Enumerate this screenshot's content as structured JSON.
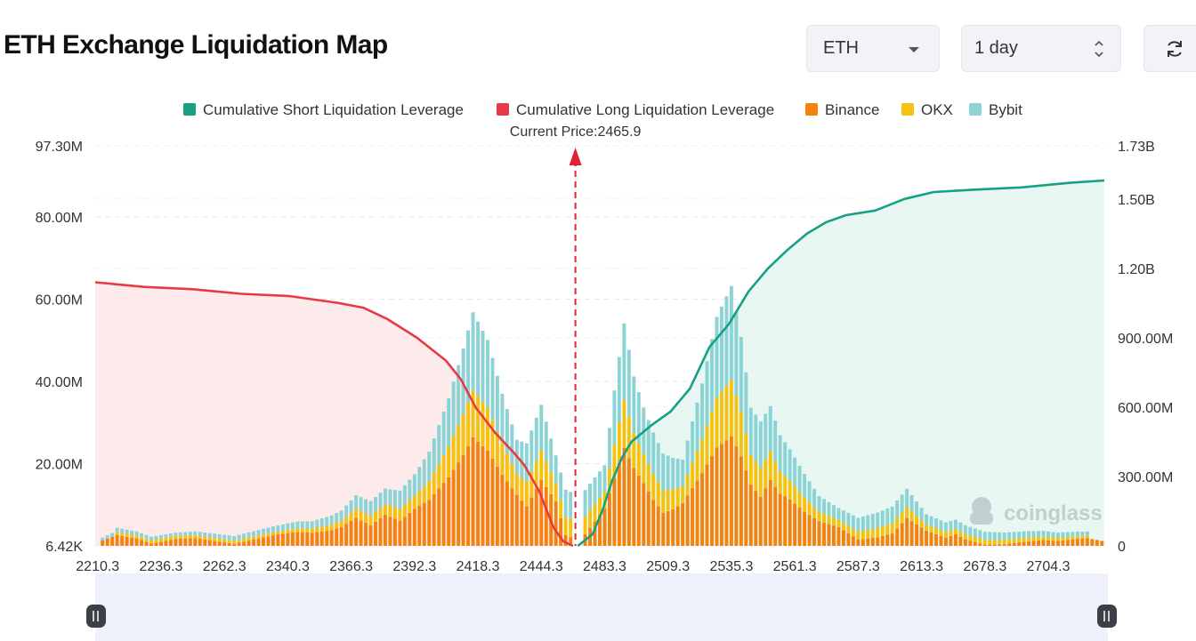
{
  "header": {
    "title": "ETH Exchange Liquidation Map",
    "asset_select": "ETH",
    "range_select": "1 day"
  },
  "icons": {
    "refresh": "refresh-icon",
    "dropdown": "chevron-down-icon",
    "stepper": "up-down-icon"
  },
  "colors": {
    "short_line": "#16a085",
    "short_fill": "#e6f6f1",
    "long_line": "#e83a45",
    "long_fill": "#fde9ea",
    "binance": "#f5820f",
    "okx": "#f5c30f",
    "bybit": "#8cd3d6",
    "price_marker": "#e0242f"
  },
  "watermark": "coinglass",
  "chart_data": {
    "type": "bar",
    "title": "",
    "current_price_label": "Current Price:2465.9",
    "current_price": 2465.9,
    "legend": [
      "Cumulative Short Liquidation Leverage",
      "Cumulative Long Liquidation Leverage",
      "Binance",
      "OKX",
      "Bybit"
    ],
    "legend_position": "top-center",
    "y_left_ticks": [
      "97.30M",
      "80.00M",
      "60.00M",
      "40.00M",
      "20.00M",
      "6.42K"
    ],
    "y_left_values": [
      97.3,
      80,
      60,
      40,
      20,
      0
    ],
    "y_left_range": [
      0,
      97.3
    ],
    "y_right_ticks": [
      "1.73B",
      "1.50B",
      "1.20B",
      "900.00M",
      "600.00M",
      "300.00M",
      "0"
    ],
    "y_right_values": [
      1.73,
      1.5,
      1.2,
      0.9,
      0.6,
      0.3,
      0
    ],
    "y_right_range": [
      0,
      1.73
    ],
    "x_ticks": [
      "2210.3",
      "2236.3",
      "2262.3",
      "2340.3",
      "2366.3",
      "2392.3",
      "2418.3",
      "2444.3",
      "2483.3",
      "2509.3",
      "2535.3",
      "2561.3",
      "2587.3",
      "2613.3",
      "2678.3",
      "2704.3"
    ],
    "x_tick_index": [
      0,
      13,
      26,
      39,
      52,
      65,
      78,
      91,
      104,
      117,
      130,
      143,
      156,
      169,
      182,
      195
    ],
    "price_index": 98.5,
    "bar_count": 207,
    "grid": true,
    "series": [
      {
        "name": "Binance",
        "peaks": [
          [
            1,
            1.3
          ],
          [
            4,
            2.6
          ],
          [
            8,
            1.8
          ],
          [
            11,
            0.6
          ],
          [
            16,
            1.7
          ],
          [
            20,
            1.9
          ],
          [
            24,
            1.2
          ],
          [
            28,
            0.5
          ],
          [
            33,
            1.8
          ],
          [
            37,
            2.8
          ],
          [
            41,
            3.4
          ],
          [
            44,
            3.2
          ],
          [
            48,
            3.8
          ],
          [
            50,
            4.6
          ],
          [
            53,
            6.8
          ],
          [
            56,
            5.0
          ],
          [
            59,
            7.6
          ],
          [
            62,
            6.1
          ],
          [
            65,
            9.0
          ],
          [
            68,
            11.2
          ],
          [
            72,
            16.7
          ],
          [
            75,
            22.1
          ],
          [
            77,
            26.4
          ],
          [
            80,
            23.2
          ],
          [
            83,
            17.3
          ],
          [
            86,
            12.4
          ],
          [
            88,
            9.6
          ],
          [
            91,
            16.1
          ],
          [
            94,
            10.8
          ],
          [
            96,
            2.6
          ],
          [
            99,
            1.2
          ],
          [
            102,
            6.0
          ],
          [
            104,
            9.1
          ],
          [
            106,
            16.5
          ],
          [
            108,
            23.8
          ],
          [
            110,
            18.9
          ],
          [
            112,
            15.3
          ],
          [
            114,
            11.2
          ],
          [
            116,
            8.0
          ],
          [
            118,
            8.9
          ],
          [
            120,
            10.4
          ],
          [
            124,
            17.7
          ],
          [
            127,
            23.9
          ],
          [
            130,
            26.6
          ],
          [
            132,
            21.8
          ],
          [
            134,
            14.9
          ],
          [
            136,
            11.9
          ],
          [
            138,
            16.0
          ],
          [
            140,
            12.7
          ],
          [
            142,
            11.3
          ],
          [
            145,
            8.3
          ],
          [
            148,
            6.0
          ],
          [
            152,
            4.6
          ],
          [
            156,
            1.5
          ],
          [
            160,
            2.1
          ],
          [
            163,
            3.0
          ],
          [
            166,
            6.8
          ],
          [
            170,
            3.7
          ],
          [
            174,
            2.0
          ],
          [
            176,
            2.8
          ],
          [
            178,
            1.6
          ],
          [
            182,
            0.3
          ],
          [
            186,
            0.4
          ],
          [
            190,
            1.0
          ],
          [
            194,
            1.4
          ],
          [
            197,
            1.2
          ],
          [
            200,
            1.6
          ],
          [
            203,
            1.9
          ],
          [
            206,
            1.2
          ]
        ],
        "color": "#f5820f"
      },
      {
        "name": "OKX",
        "peaks": [
          [
            4,
            0.7
          ],
          [
            37,
            0.7
          ],
          [
            44,
            1.0
          ],
          [
            50,
            1.5
          ],
          [
            53,
            2.2
          ],
          [
            59,
            2.5
          ],
          [
            65,
            3.2
          ],
          [
            68,
            4.5
          ],
          [
            72,
            7.5
          ],
          [
            75,
            9.9
          ],
          [
            77,
            11.5
          ],
          [
            80,
            10.3
          ],
          [
            83,
            7.6
          ],
          [
            86,
            5.1
          ],
          [
            91,
            7.2
          ],
          [
            94,
            4.5
          ],
          [
            104,
            4.1
          ],
          [
            106,
            8.1
          ],
          [
            108,
            11.6
          ],
          [
            110,
            8.5
          ],
          [
            112,
            7.0
          ],
          [
            120,
            4.1
          ],
          [
            124,
            8.2
          ],
          [
            127,
            12.2
          ],
          [
            130,
            13.8
          ],
          [
            132,
            10.9
          ],
          [
            134,
            7.2
          ],
          [
            138,
            7.0
          ],
          [
            140,
            5.4
          ],
          [
            145,
            3.5
          ],
          [
            148,
            2.3
          ],
          [
            152,
            1.7
          ],
          [
            166,
            2.7
          ],
          [
            170,
            1.5
          ],
          [
            203,
            0.6
          ]
        ],
        "color": "#f5c30f"
      },
      {
        "name": "Bybit",
        "peaks": [
          [
            1,
            0.7
          ],
          [
            4,
            1.1
          ],
          [
            16,
            0.8
          ],
          [
            37,
            1.5
          ],
          [
            44,
            1.8
          ],
          [
            50,
            2.5
          ],
          [
            53,
            3.3
          ],
          [
            59,
            3.8
          ],
          [
            65,
            5.2
          ],
          [
            68,
            7.2
          ],
          [
            72,
            11.7
          ],
          [
            75,
            16.0
          ],
          [
            77,
            18.9
          ],
          [
            80,
            16.6
          ],
          [
            83,
            12.1
          ],
          [
            86,
            8.3
          ],
          [
            91,
            11.0
          ],
          [
            94,
            6.7
          ],
          [
            104,
            6.4
          ],
          [
            106,
            13.2
          ],
          [
            108,
            18.7
          ],
          [
            110,
            13.8
          ],
          [
            112,
            11.3
          ],
          [
            120,
            6.5
          ],
          [
            124,
            13.6
          ],
          [
            127,
            19.6
          ],
          [
            130,
            22.8
          ],
          [
            132,
            18.1
          ],
          [
            134,
            11.5
          ],
          [
            138,
            11.0
          ],
          [
            140,
            8.8
          ],
          [
            145,
            5.7
          ],
          [
            148,
            3.8
          ],
          [
            152,
            2.9
          ],
          [
            166,
            4.4
          ],
          [
            170,
            2.5
          ],
          [
            203,
            1.0
          ]
        ],
        "color": "#8cd3d6"
      },
      {
        "name": "Cumulative Long Liquidation Leverage",
        "axis": "right",
        "points": [
          [
            0,
            1.14
          ],
          [
            10,
            1.12
          ],
          [
            20,
            1.11
          ],
          [
            30,
            1.09
          ],
          [
            40,
            1.08
          ],
          [
            50,
            1.05
          ],
          [
            55,
            1.03
          ],
          [
            60,
            0.98
          ],
          [
            66,
            0.9
          ],
          [
            72,
            0.8
          ],
          [
            75,
            0.72
          ],
          [
            78,
            0.6
          ],
          [
            82,
            0.49
          ],
          [
            86,
            0.4
          ],
          [
            88,
            0.35
          ],
          [
            91,
            0.24
          ],
          [
            94,
            0.08
          ],
          [
            96,
            0.02
          ],
          [
            98,
            0.0
          ]
        ],
        "color": "#e83a45"
      },
      {
        "name": "Cumulative Short Liquidation Leverage",
        "axis": "right",
        "points": [
          [
            99,
            0.0
          ],
          [
            102,
            0.05
          ],
          [
            104,
            0.15
          ],
          [
            106,
            0.28
          ],
          [
            108,
            0.38
          ],
          [
            110,
            0.45
          ],
          [
            114,
            0.52
          ],
          [
            118,
            0.58
          ],
          [
            122,
            0.68
          ],
          [
            126,
            0.86
          ],
          [
            130,
            0.96
          ],
          [
            134,
            1.1
          ],
          [
            138,
            1.2
          ],
          [
            142,
            1.28
          ],
          [
            146,
            1.35
          ],
          [
            150,
            1.4
          ],
          [
            154,
            1.43
          ],
          [
            160,
            1.45
          ],
          [
            166,
            1.5
          ],
          [
            172,
            1.53
          ],
          [
            180,
            1.54
          ],
          [
            190,
            1.55
          ],
          [
            200,
            1.57
          ],
          [
            207,
            1.58
          ]
        ],
        "color": "#16a085"
      }
    ]
  }
}
